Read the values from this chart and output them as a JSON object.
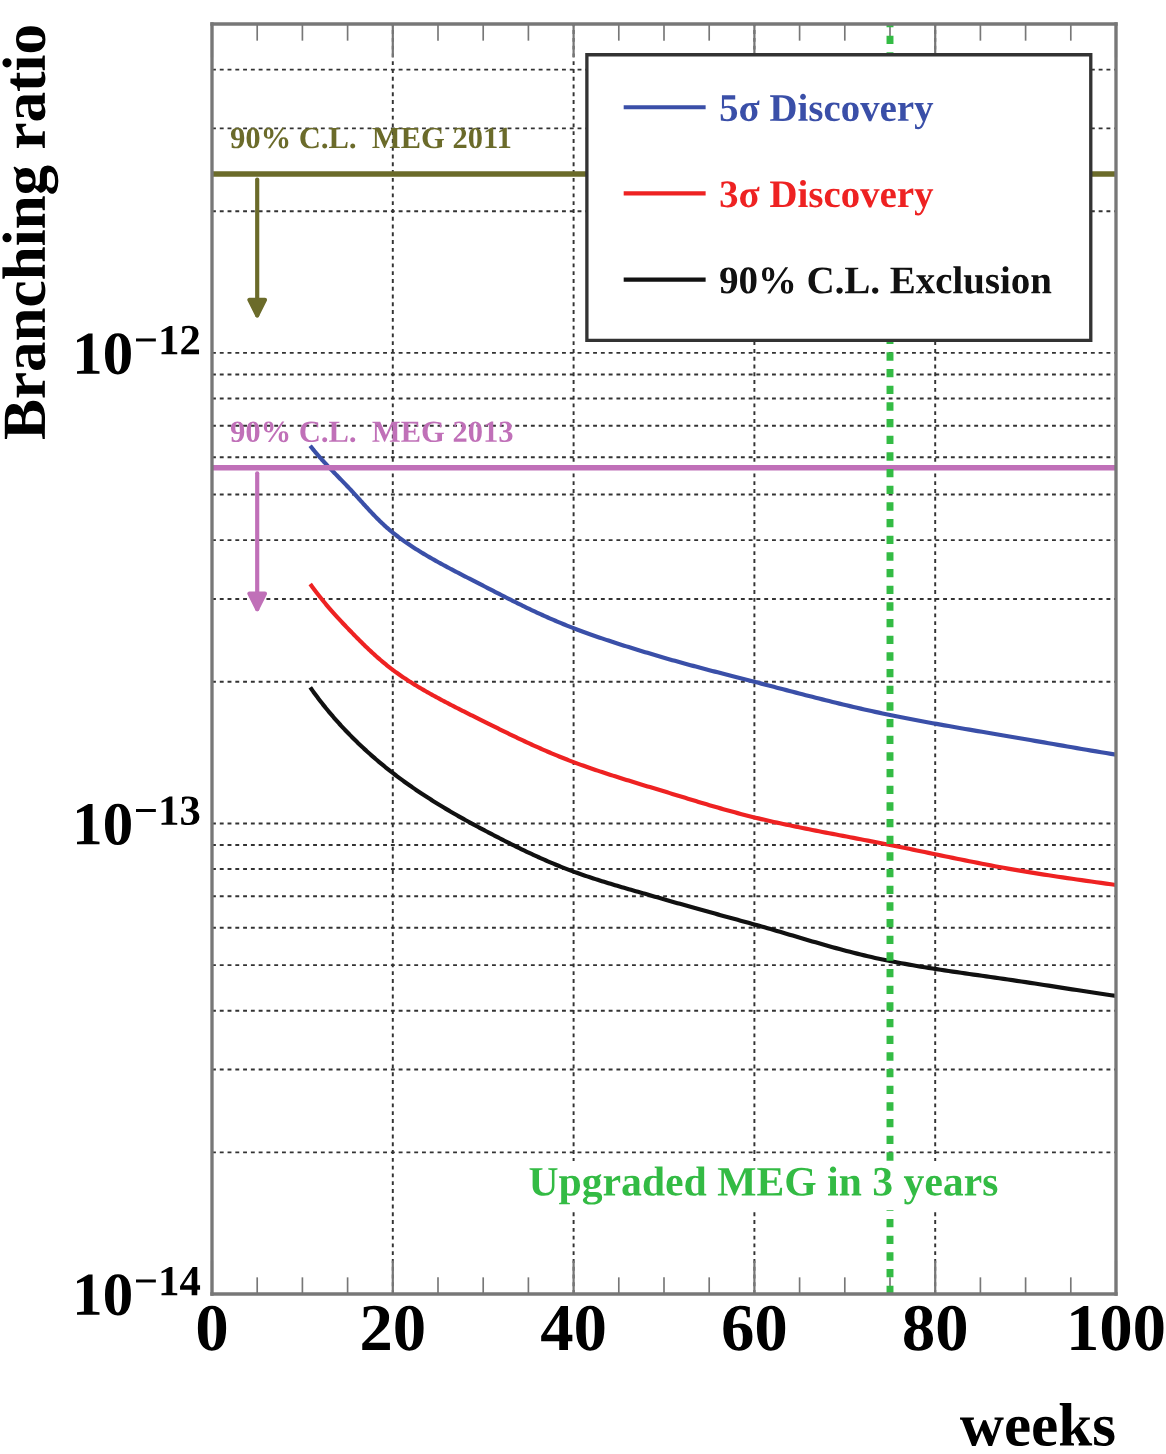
{
  "chart_data": {
    "type": "line",
    "xlabel": "weeks",
    "ylabel": "Branching ratio",
    "log": "y",
    "xlim": [
      0,
      100
    ],
    "xticks": [
      0,
      20,
      40,
      60,
      80,
      100
    ],
    "ylim": [
      1e-14,
      5e-12
    ],
    "yticks": [
      {
        "value": 1e-14,
        "label": "10$^{−14}$"
      },
      {
        "value": 2e-14,
        "label": null
      },
      {
        "value": 3e-14,
        "label": null
      },
      {
        "value": 4e-14,
        "label": null
      },
      {
        "value": 5e-14,
        "label": null
      },
      {
        "value": 6e-14,
        "label": null
      },
      {
        "value": 7e-14,
        "label": null
      },
      {
        "value": 8e-14,
        "label": null
      },
      {
        "value": 9e-14,
        "label": null
      },
      {
        "value": 1e-13,
        "label": "10$^{−13}$"
      },
      {
        "value": 2e-13,
        "label": null
      },
      {
        "value": 3e-13,
        "label": null
      },
      {
        "value": 4e-13,
        "label": null
      },
      {
        "value": 5e-13,
        "label": null
      },
      {
        "value": 6e-13,
        "label": null
      },
      {
        "value": 7e-13,
        "label": null
      },
      {
        "value": 8e-13,
        "label": null
      },
      {
        "value": 9e-13,
        "label": null
      },
      {
        "value": 1e-12,
        "label": "10$^{−12}$"
      },
      {
        "value": 2e-12,
        "label": null
      },
      {
        "value": 3e-12,
        "label": null
      },
      {
        "value": 4e-12,
        "label": null
      }
    ],
    "grid": true,
    "legend": "top right",
    "line_style": "solid",
    "marker": "none",
    "series": [
      {
        "name": "5σ Discovery",
        "color": "#3a4fa8",
        "x": [
          11,
          15,
          20,
          30,
          40,
          50,
          60,
          75,
          90,
          100
        ],
        "values": [
          6.3e-13,
          5.2e-13,
          4.15e-13,
          3.2e-13,
          2.6e-13,
          2.25e-13,
          2e-13,
          1.7e-13,
          1.51e-13,
          1.4e-13
        ]
      },
      {
        "name": "3σ Discovery",
        "color": "#ee2222",
        "x": [
          11,
          15,
          20,
          30,
          40,
          50,
          60,
          75,
          90,
          100
        ],
        "values": [
          3.2e-13,
          2.6e-13,
          2.12e-13,
          1.65e-13,
          1.35e-13,
          1.17e-13,
          1.03e-13,
          9e-14,
          7.9e-14,
          7.4e-14
        ]
      },
      {
        "name": "90% C.L. Exclusion",
        "color": "#111111",
        "x": [
          11,
          15,
          20,
          30,
          40,
          50,
          60,
          75,
          90,
          100
        ],
        "values": [
          1.93e-13,
          1.56e-13,
          1.28e-13,
          9.7e-14,
          7.9e-14,
          6.9e-14,
          6.1e-14,
          5.1e-14,
          4.6e-14,
          4.3e-14
        ]
      }
    ],
    "ref_lines": [
      {
        "axis": "y",
        "value": 2.4e-12,
        "label": "90% C.L.  MEG 2011",
        "color": "#6b6b2a",
        "line_style": "solid"
      },
      {
        "axis": "y",
        "value": 5.7e-13,
        "label": "90% C.L.  MEG 2013",
        "color": "#c070b8",
        "line_style": "solid"
      },
      {
        "axis": "x",
        "value": 75,
        "label": "Upgraded MEG in 3 years",
        "color": "#33bb44",
        "line_style": "dotted"
      }
    ]
  }
}
